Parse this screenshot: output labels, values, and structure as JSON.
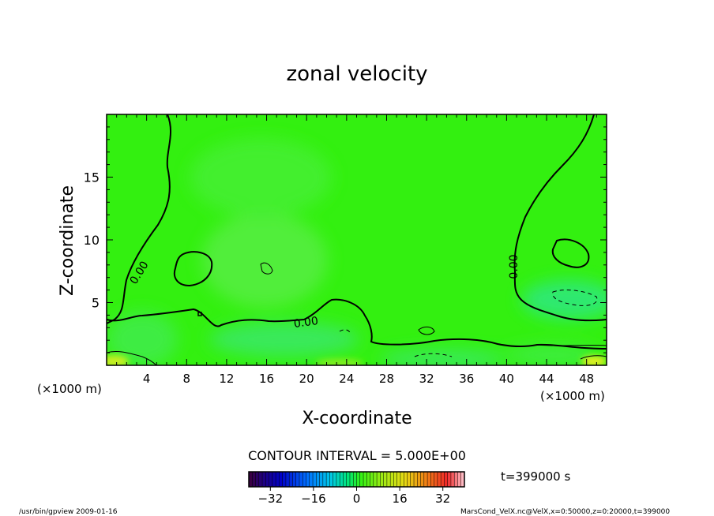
{
  "chart_data": {
    "type": "heatmap",
    "title": "zonal velocity",
    "xlabel": "X-coordinate",
    "ylabel": "Z-coordinate",
    "x_unit": "(×1000 m)",
    "y_unit": "(×1000 m)",
    "xlim": [
      0,
      50
    ],
    "ylim": [
      0,
      20
    ],
    "x_ticks": [
      4,
      8,
      12,
      16,
      20,
      24,
      28,
      32,
      36,
      40,
      44,
      48
    ],
    "y_ticks": [
      5,
      10,
      15
    ],
    "contour_labels": [
      "0.00",
      "0.00",
      "0.00"
    ],
    "contour_interval": "CONTOUR INTERVAL = 5.000E+00",
    "time_label": "t=399000 s",
    "colorbar": {
      "min": -40,
      "max": 40,
      "ticks": [
        -32,
        -16,
        0,
        16,
        32
      ]
    },
    "footer_left": "/usr/bin/gpview  2009-01-16",
    "footer_right": "MarsCond_VelX.nc@VelX,x=0:50000,z=0:20000,t=399000"
  },
  "colors": {
    "background_field": "#33f010",
    "contour": "#000000"
  }
}
